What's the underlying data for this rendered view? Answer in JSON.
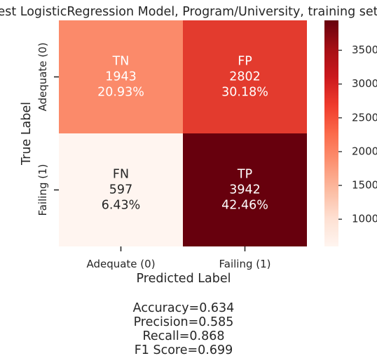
{
  "chart_data": {
    "type": "heatmap",
    "title": "Best LogisticRegression Model, Program/University, training set",
    "xlabel": "Predicted Label",
    "ylabel": "True Label",
    "x_categories": [
      "Adequate (0)",
      "Failing (1)"
    ],
    "y_categories": [
      "Adequate (0)",
      "Failing (1)"
    ],
    "cells": [
      {
        "row": 0,
        "col": 0,
        "name": "TN",
        "count": "1943",
        "pct": "20.93%",
        "value": 1943,
        "color": "#fb8a6a",
        "text_color": "#ffffff"
      },
      {
        "row": 0,
        "col": 1,
        "name": "FP",
        "count": "2802",
        "pct": "30.18%",
        "value": 2802,
        "color": "#e33b2e",
        "text_color": "#ffffff"
      },
      {
        "row": 1,
        "col": 0,
        "name": "FN",
        "count": "597",
        "pct": "6.43%",
        "value": 597,
        "color": "#fff5f0",
        "text_color": "#262626"
      },
      {
        "row": 1,
        "col": 1,
        "name": "TP",
        "count": "3942",
        "pct": "42.46%",
        "value": 3942,
        "color": "#67000d",
        "text_color": "#ffffff"
      }
    ],
    "colorbar": {
      "range": [
        597,
        3942
      ],
      "ticks": [
        1000,
        1500,
        2000,
        2500,
        3000,
        3500
      ],
      "tick_labels": [
        "1000",
        "1500",
        "2000",
        "2500",
        "3000",
        "3500"
      ],
      "colormap": "Reds"
    },
    "metrics": [
      "Accuracy=0.634",
      "Precision=0.585",
      "Recall=0.868",
      "F1 Score=0.699"
    ]
  }
}
